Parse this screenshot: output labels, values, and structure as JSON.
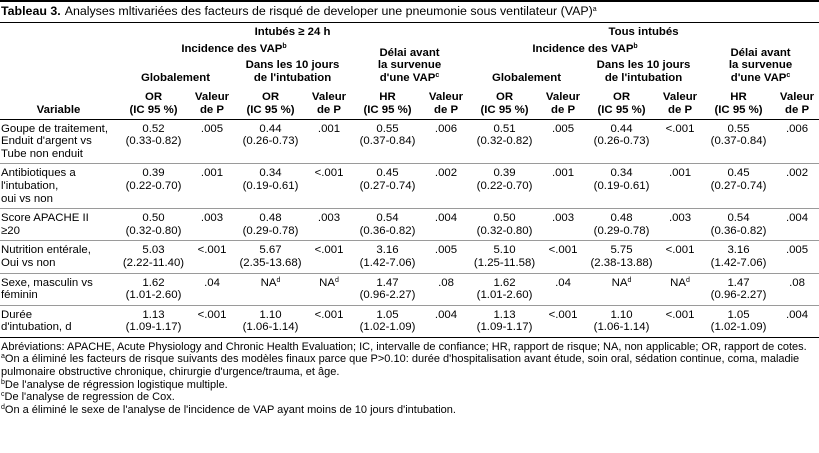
{
  "title": {
    "label": "Tableau 3.",
    "text": "Analyses mltivariées des facteurs de risqué de developer une pneumonie sous ventilateur (VAP)",
    "sup": "a"
  },
  "header": {
    "variable": "Variable",
    "groups": [
      {
        "name": "Intubés ≥ 24 h",
        "incidence": [
          {
            "text": "Incidence des VAP",
            "sup": "b"
          }
        ],
        "delay": [
          "Délai avant",
          "la survenue",
          {
            "text": "d'une VAP",
            "sup": "c"
          }
        ],
        "subgroups": [
          [
            "Globalement"
          ],
          [
            "Dans les 10 jours",
            "de l'intubation"
          ]
        ],
        "columns": [
          [
            "OR",
            "(IC 95 %)"
          ],
          [
            "Valeur",
            "de P"
          ],
          [
            "OR",
            "(IC 95 %)"
          ],
          [
            "Valeur",
            "de P"
          ],
          [
            "HR",
            "(IC 95 %)"
          ],
          [
            "Valeur",
            "de P"
          ]
        ]
      },
      {
        "name": "Tous intubés",
        "incidence": [
          {
            "text": "Incidence des VAP",
            "sup": "b"
          }
        ],
        "delay": [
          "Délai avant",
          "la survenue",
          {
            "text": "d'une VAP",
            "sup": "c"
          }
        ],
        "subgroups": [
          [
            "Globalement"
          ],
          [
            "Dans les 10 jours",
            "de l'intubation"
          ]
        ],
        "columns": [
          [
            "OR",
            "(IC 95 %)"
          ],
          [
            "Valeur",
            "de P"
          ],
          [
            "OR",
            "(IC 95 %)"
          ],
          [
            "Valeur",
            "de P"
          ],
          [
            "HR",
            "(IC 95 %)"
          ],
          [
            "Valeur",
            "de P"
          ]
        ]
      }
    ]
  },
  "table": {
    "rows": [
      {
        "variable": [
          "Goupe de traitement,",
          "Enduit d'argent vs",
          "Tube non enduit"
        ],
        "cells": [
          [
            "0.52",
            "(0.33-0.82)"
          ],
          [
            ".005"
          ],
          [
            "0.44",
            "(0.26-0.73)"
          ],
          [
            ".001"
          ],
          [
            "0.55",
            "(0.37-0.84)"
          ],
          [
            ".006"
          ],
          [
            "0.51",
            "(0.32-0.82)"
          ],
          [
            ".005"
          ],
          [
            "0.44",
            "(0.26-0.73)"
          ],
          [
            "<.001"
          ],
          [
            "0.55",
            "(0.37-0.84)"
          ],
          [
            ".006"
          ]
        ]
      },
      {
        "variable": [
          "Antibiotiques a",
          "l'intubation,",
          "oui vs non"
        ],
        "cells": [
          [
            "0.39",
            "(0.22-0.70)"
          ],
          [
            ".001"
          ],
          [
            "0.34",
            "(0.19-0.61)"
          ],
          [
            "<.001"
          ],
          [
            "0.45",
            "(0.27-0.74)"
          ],
          [
            ".002"
          ],
          [
            "0.39",
            "(0.22-0.70)"
          ],
          [
            ".001"
          ],
          [
            "0.34",
            "(0.19-0.61)"
          ],
          [
            ".001"
          ],
          [
            "0.45",
            "(0.27-0.74)"
          ],
          [
            ".002"
          ]
        ]
      },
      {
        "variable": [
          "Score APACHE II",
          "≥20"
        ],
        "cells": [
          [
            "0.50",
            "(0.32-0.80)"
          ],
          [
            ".003"
          ],
          [
            "0.48",
            "(0.29-0.78)"
          ],
          [
            ".003"
          ],
          [
            "0.54",
            "(0.36-0.82)"
          ],
          [
            ".004"
          ],
          [
            "0.50",
            "(0.32-0.80)"
          ],
          [
            ".003"
          ],
          [
            "0.48",
            "(0.29-0.78)"
          ],
          [
            ".003"
          ],
          [
            "0.54",
            "(0.36-0.82)"
          ],
          [
            ".004"
          ]
        ]
      },
      {
        "variable": [
          "Nutrition entérale,",
          "Oui vs non"
        ],
        "cells": [
          [
            "5.03",
            "(2.22-11.40)"
          ],
          [
            "<.001"
          ],
          [
            "5.67",
            "(2.35-13.68)"
          ],
          [
            "<.001"
          ],
          [
            "3.16",
            "(1.42-7.06)"
          ],
          [
            ".005"
          ],
          [
            "5.10",
            "(1.25-11.58)"
          ],
          [
            "<.001"
          ],
          [
            "5.75",
            "(2.38-13.88)"
          ],
          [
            "<.001"
          ],
          [
            "3.16",
            "(1.42-7.06)"
          ],
          [
            ".005"
          ]
        ]
      },
      {
        "variable": [
          "Sexe, masculin vs",
          "féminin"
        ],
        "cells": [
          [
            "1.62",
            "(1.01-2.60)"
          ],
          [
            ".04"
          ],
          [
            {
              "text": "NA",
              "sup": "d"
            }
          ],
          [
            {
              "text": "NA",
              "sup": "d"
            }
          ],
          [
            "1.47",
            "(0.96-2.27)"
          ],
          [
            ".08"
          ],
          [
            "1.62",
            "(1.01-2.60)"
          ],
          [
            ".04"
          ],
          [
            {
              "text": "NA",
              "sup": "d"
            }
          ],
          [
            {
              "text": "NA",
              "sup": "d"
            }
          ],
          [
            "1.47",
            "(0.96-2.27)"
          ],
          [
            ".08"
          ]
        ]
      },
      {
        "variable": [
          "Durée",
          "d'intubation, d"
        ],
        "cells": [
          [
            "1.13",
            "(1.09-1.17)"
          ],
          [
            "<.001"
          ],
          [
            "1.10",
            "(1.06-1.14)"
          ],
          [
            "<.001"
          ],
          [
            "1.05",
            "(1.02-1.09)"
          ],
          [
            ".004"
          ],
          [
            "1.13",
            "(1.09-1.17)"
          ],
          [
            "<.001"
          ],
          [
            "1.10",
            "(1.06-1.14)"
          ],
          [
            "<.001"
          ],
          [
            "1.05",
            "(1.02-1.09)"
          ],
          [
            ".004"
          ]
        ]
      }
    ]
  },
  "footnotes": [
    {
      "text": "Abréviations: APACHE, Acute Physiology and Chronic Health Evaluation; IC, intervalle de confiance; HR, rapport de risque; NA, non applicable; OR, rapport de cotes."
    },
    {
      "sup": "a",
      "text": "On a éliminé les facteurs de risque suivants des modèles finaux parce que P>0.10: durée d'hospitalisation avant étude, soin oral, sédation continue, coma, maladie pulmonaire obstructive chronique, chirurgie d'urgence/trauma, et âge."
    },
    {
      "sup": "b",
      "text": "De l'analyse de régression logistique multiple."
    },
    {
      "sup": "c",
      "text": "De l'analyse de regression de Cox."
    },
    {
      "sup": "d",
      "text": "On a éliminé le sexe de l'analyse de l'incidence de VAP ayant moins de 10 jours d'intubation."
    }
  ]
}
